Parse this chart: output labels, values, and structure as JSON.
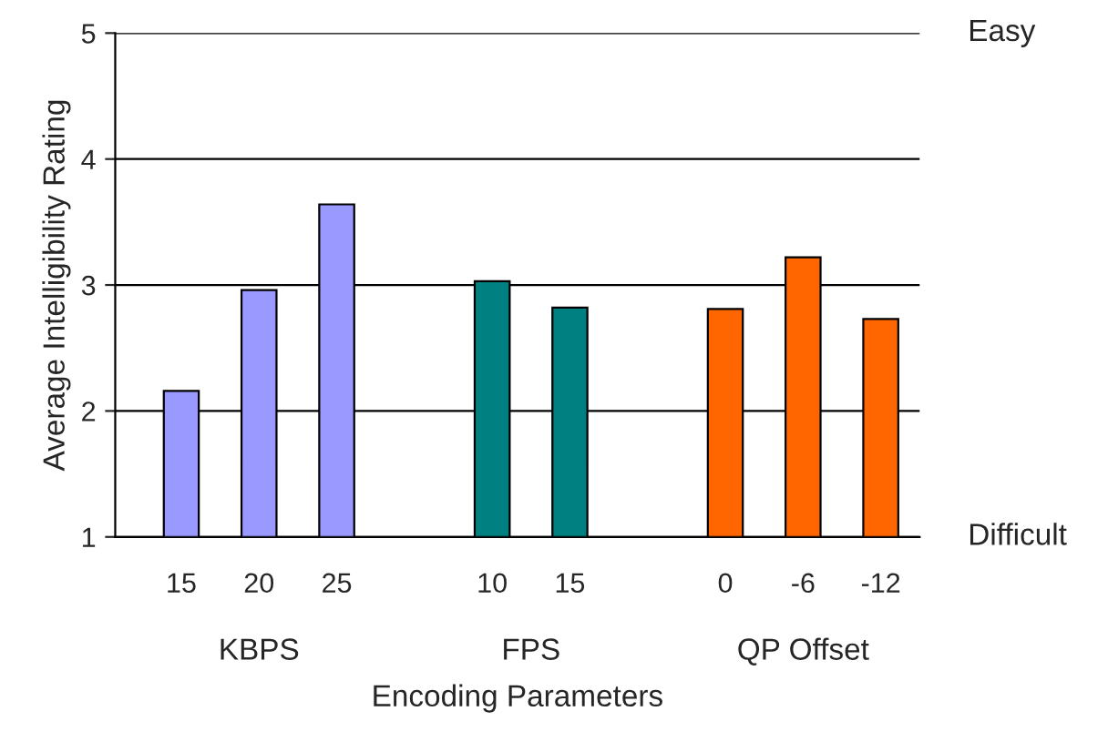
{
  "chart_data": {
    "type": "bar",
    "xlabel": "Encoding Parameters",
    "ylabel": "Average Intelligibility Rating",
    "categories": [
      "15",
      "20",
      "25",
      null,
      "10",
      "15",
      null,
      "0",
      "-6",
      "-12"
    ],
    "series": [
      {
        "color": "#9999ff",
        "values": [
          2.16,
          2.96,
          3.64,
          null,
          null,
          null,
          null,
          null,
          null,
          null
        ]
      },
      {
        "color": "#008080",
        "values": [
          null,
          null,
          null,
          null,
          3.03,
          2.82,
          null,
          null,
          null,
          null
        ]
      },
      {
        "color": "#ff6600",
        "values": [
          null,
          null,
          null,
          null,
          null,
          null,
          null,
          2.81,
          3.22,
          2.73
        ]
      }
    ],
    "annotations": [
      "KBPS",
      "FPS",
      "QP Offset",
      "Easy",
      "Difficult"
    ],
    "ylim": [
      1,
      5
    ],
    "yticks": [
      1,
      2,
      3,
      4,
      5
    ],
    "grid": "y",
    "legend": false
  }
}
